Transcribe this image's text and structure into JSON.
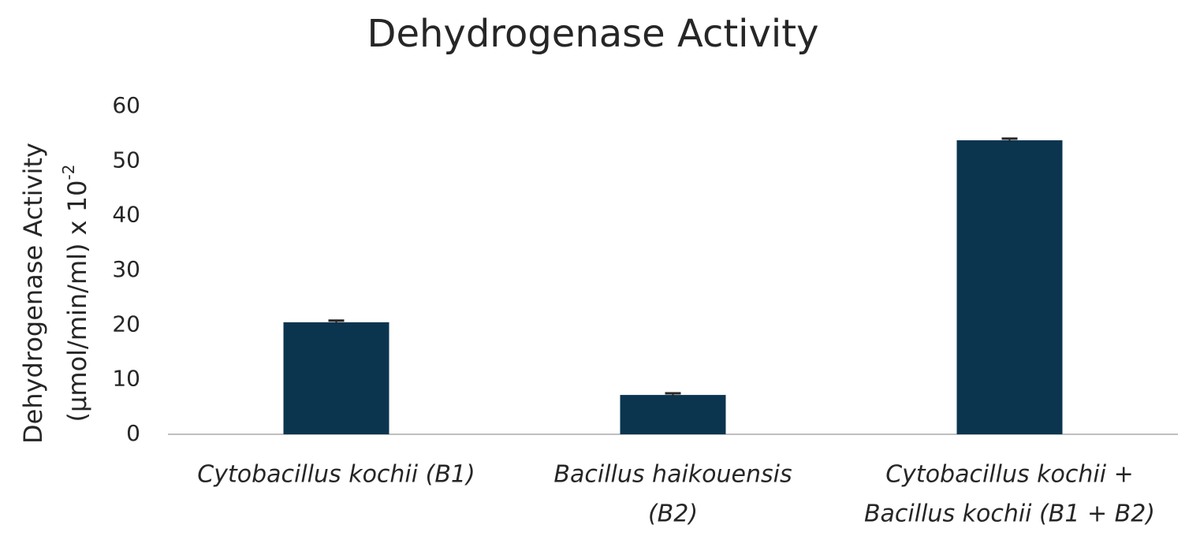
{
  "chart_data": {
    "type": "bar",
    "title": "Dehydrogenase Activity",
    "y_label": {
      "lines": [
        "Dehydrogenase Activity",
        "(µmol/min/ml) x 10"
      ],
      "superscript": "-2"
    },
    "categories": [
      [
        "Cytobacillus kochii (B1)"
      ],
      [
        "Bacillus haikouensis",
        "(B2)"
      ],
      [
        "Cytobacillus kochii +",
        "Bacillus kochii (B1 + B2)"
      ]
    ],
    "values": [
      20.5,
      7.2,
      53.8
    ],
    "errors": [
      0.3,
      0.3,
      0.3
    ],
    "color": "#0b354f",
    "ylim": [
      0,
      60
    ],
    "yticks": [
      0,
      10,
      20,
      30,
      40,
      50,
      60
    ],
    "grid": false
  }
}
